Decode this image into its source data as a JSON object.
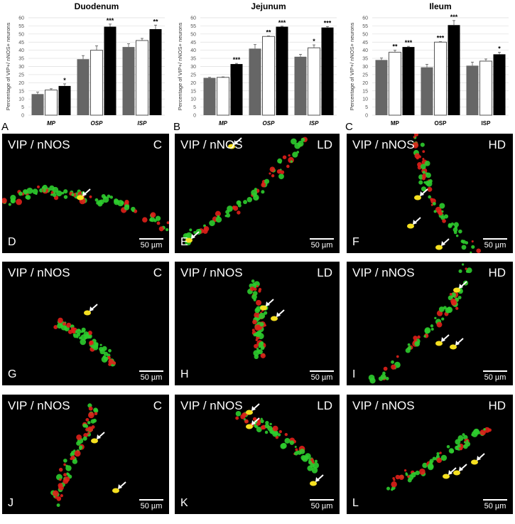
{
  "chart_data": [
    {
      "type": "bar",
      "panel": "A",
      "title": "Duodenum",
      "ylabel": "Percentage of VIP+/ nNOS+ neurons",
      "ylim": [
        0,
        60
      ],
      "yticks": [
        0,
        5,
        10,
        15,
        20,
        25,
        30,
        35,
        40,
        45,
        50,
        55,
        60
      ],
      "grid": true,
      "categories": [
        "MP",
        "OSP",
        "ISP"
      ],
      "series": [
        {
          "color": "#666666",
          "values": [
            13,
            34.5,
            42
          ],
          "errors": [
            1.2,
            2.2,
            2
          ]
        },
        {
          "color": "#ffffff",
          "values": [
            15.5,
            40,
            46
          ],
          "errors": [
            0.8,
            2.7,
            1.3
          ]
        },
        {
          "color": "#000000",
          "values": [
            18,
            54.5,
            53
          ],
          "errors": [
            1.3,
            1.6,
            2.5
          ]
        }
      ],
      "significance": [
        [
          "",
          "",
          ""
        ],
        [
          "",
          "",
          ""
        ],
        [
          "*",
          "***",
          "**"
        ]
      ]
    },
    {
      "type": "bar",
      "panel": "B",
      "title": "Jejunum",
      "ylabel": "Percentage of VIP+/ nNOS+ neurons",
      "ylim": [
        0,
        60
      ],
      "yticks": [
        0,
        5,
        10,
        15,
        20,
        25,
        30,
        35,
        40,
        45,
        50,
        55,
        60
      ],
      "grid": true,
      "categories": [
        "MP",
        "OSP",
        "ISP"
      ],
      "series": [
        {
          "color": "#666666",
          "values": [
            23,
            41,
            36
          ],
          "errors": [
            0.3,
            2.5,
            1.5
          ]
        },
        {
          "color": "#ffffff",
          "values": [
            23.3,
            48.5,
            41.5
          ],
          "errors": [
            0.3,
            0.3,
            1.8
          ]
        },
        {
          "color": "#000000",
          "values": [
            31.5,
            54.5,
            54
          ],
          "errors": [
            0.4,
            0.3,
            0.6
          ]
        }
      ],
      "significance": [
        [
          "",
          "",
          ""
        ],
        [
          "",
          "**",
          "*"
        ],
        [
          "***",
          "***",
          "***"
        ]
      ]
    },
    {
      "type": "bar",
      "panel": "C",
      "title": "Ileum",
      "ylabel": "Percentage of VIP+/ nNOS+ neurons",
      "ylim": [
        0,
        60
      ],
      "yticks": [
        0,
        5,
        10,
        15,
        20,
        25,
        30,
        35,
        40,
        45,
        50,
        55,
        60
      ],
      "grid": true,
      "categories": [
        "MP",
        "OSP",
        "ISP"
      ],
      "series": [
        {
          "color": "#666666",
          "values": [
            34,
            29.5,
            30.5
          ],
          "errors": [
            1.2,
            1.8,
            2.2
          ]
        },
        {
          "color": "#ffffff",
          "values": [
            38.8,
            45,
            33.3
          ],
          "errors": [
            1.2,
            0.3,
            1.3
          ]
        },
        {
          "color": "#000000",
          "values": [
            42,
            55.5,
            37.5
          ],
          "errors": [
            0.4,
            2.8,
            1.3
          ]
        }
      ],
      "significance": [
        [
          "",
          "",
          ""
        ],
        [
          "**",
          "***",
          ""
        ],
        [
          "***",
          "***",
          "*"
        ]
      ]
    }
  ],
  "panels": [
    {
      "letter": "D",
      "title": "VIP / nNOS",
      "group": "C",
      "scale": "50 µm"
    },
    {
      "letter": "E",
      "title": "VIP / nNOS",
      "group": "LD",
      "scale": "50 µm"
    },
    {
      "letter": "F",
      "title": "VIP / nNOS",
      "group": "HD",
      "scale": "50 µm"
    },
    {
      "letter": "G",
      "title": "VIP / nNOS",
      "group": "C",
      "scale": "50 µm"
    },
    {
      "letter": "H",
      "title": "VIP / nNOS",
      "group": "LD",
      "scale": "50 µm"
    },
    {
      "letter": "I",
      "title": "VIP / nNOS",
      "group": "HD",
      "scale": "50 µm"
    },
    {
      "letter": "J",
      "title": "VIP / nNOS",
      "group": "C",
      "scale": "50 µm"
    },
    {
      "letter": "K",
      "title": "VIP / nNOS",
      "group": "LD",
      "scale": "50 µm"
    },
    {
      "letter": "L",
      "title": "VIP / nNOS",
      "group": "HD",
      "scale": "50 µm"
    }
  ]
}
